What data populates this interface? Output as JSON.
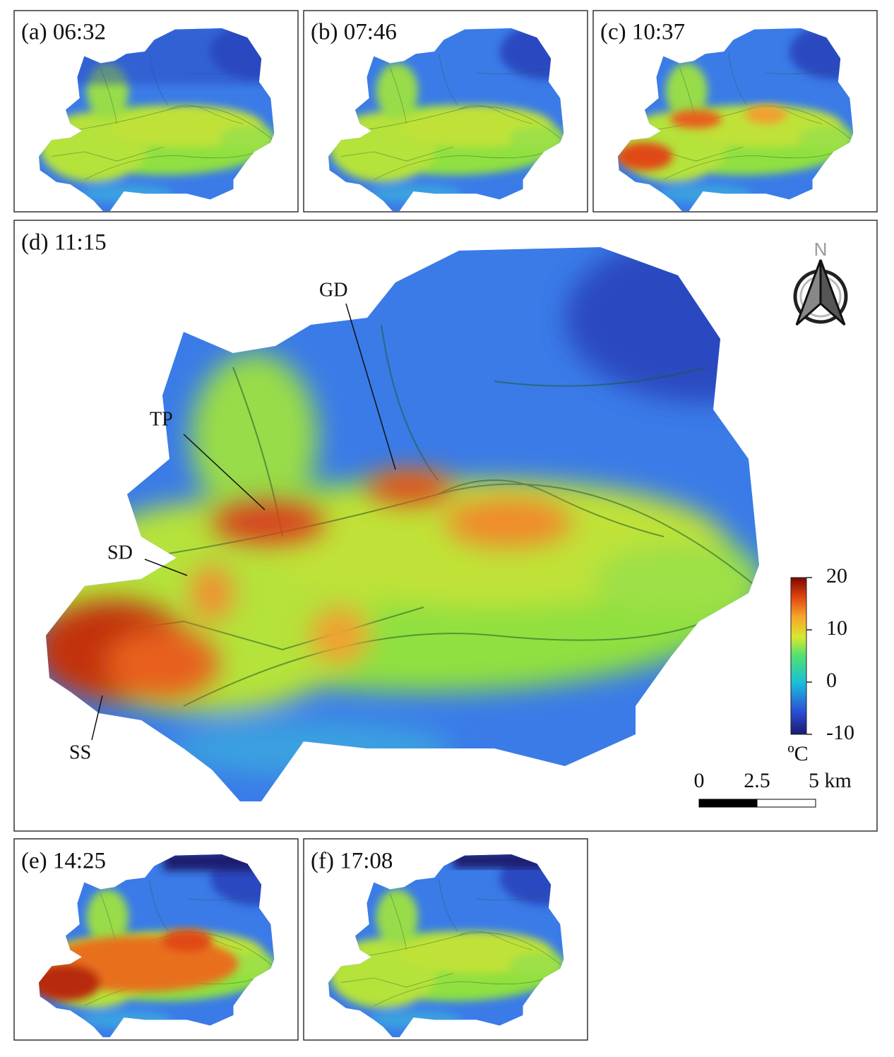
{
  "panels": [
    {
      "label": "(a) 06:32"
    },
    {
      "label": "(b) 07:46"
    },
    {
      "label": "(c) 10:37"
    },
    {
      "label": "(d) 11:15"
    },
    {
      "label": "(e) 14:25"
    },
    {
      "label": "(f) 17:08"
    }
  ],
  "sites": [
    {
      "label": "GD"
    },
    {
      "label": "TP"
    },
    {
      "label": "SD"
    },
    {
      "label": "SS"
    }
  ],
  "colorbar": {
    "range": [
      -10,
      20
    ],
    "ticks": [
      -10,
      0,
      10,
      20
    ],
    "unit": "ºC"
  },
  "scale_bar": {
    "labels": [
      "0",
      "2.5",
      "5 km"
    ]
  },
  "north": "N"
}
